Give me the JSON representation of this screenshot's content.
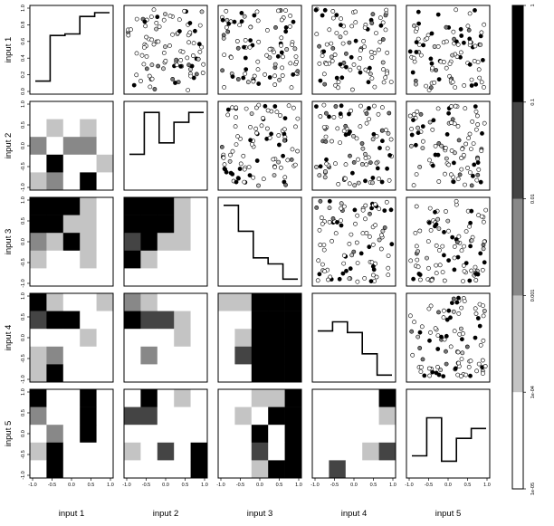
{
  "chart_data": {
    "type": "heatmap",
    "variables": [
      "input 1",
      "input 2",
      "input 3",
      "input 4",
      "input 5"
    ],
    "axis_ticks": [
      "-1.0",
      "-0.5",
      "0.0",
      "0.5",
      "1.0"
    ],
    "cdf_ticks": [
      "0.0",
      "0.2",
      "0.4",
      "0.6",
      "0.8",
      "1.0"
    ],
    "grid_breaks": [
      -1.0,
      -0.6,
      -0.2,
      0.2,
      0.6,
      1.0
    ],
    "color_scale": {
      "labels": [
        "1",
        "0.1",
        "0.01",
        "0.001",
        "1e-04",
        "1e-05"
      ],
      "colors": [
        "#000000",
        "#444444",
        "#888888",
        "#c4c4c4",
        "#ffffff"
      ],
      "scale": "log"
    },
    "diagonal_step_curves": {
      "input 1": [
        0.1,
        0.7,
        0.72,
        0.95,
        1.0
      ],
      "input 2": [
        0.4,
        0.95,
        0.55,
        0.82,
        0.95
      ],
      "input 3": [
        0.99,
        0.65,
        0.3,
        0.22,
        0.02
      ],
      "input 4": [
        0.6,
        0.72,
        0.58,
        0.3,
        0.02
      ],
      "input 5": [
        0.22,
        0.72,
        0.15,
        0.45,
        0.58
      ]
    },
    "heatmaps": [
      {
        "row": "input 2",
        "col": "input 1",
        "levels": [
          [
            4,
            4,
            4,
            4,
            4
          ],
          [
            4,
            3,
            4,
            3,
            4
          ],
          [
            2,
            4,
            2,
            2,
            4
          ],
          [
            4,
            0,
            4,
            4,
            3
          ],
          [
            3,
            2,
            4,
            0,
            4
          ]
        ]
      },
      {
        "row": "input 3",
        "col": "input 1",
        "levels": [
          [
            0,
            0,
            0,
            3,
            4
          ],
          [
            0,
            0,
            3,
            3,
            4
          ],
          [
            2,
            3,
            0,
            3,
            4
          ],
          [
            3,
            4,
            4,
            3,
            4
          ],
          [
            4,
            4,
            4,
            4,
            4
          ]
        ]
      },
      {
        "row": "input 3",
        "col": "input 2",
        "levels": [
          [
            0,
            0,
            0,
            3,
            4
          ],
          [
            0,
            0,
            0,
            3,
            4
          ],
          [
            1,
            0,
            3,
            3,
            4
          ],
          [
            0,
            3,
            4,
            4,
            4
          ],
          [
            4,
            4,
            4,
            4,
            4
          ]
        ]
      },
      {
        "row": "input 3",
        "col": "input 4",
        "levels": [
          [
            3,
            0,
            0,
            0,
            0
          ],
          [
            4,
            4,
            0,
            0,
            0
          ],
          [
            4,
            4,
            4,
            0,
            0
          ],
          [
            4,
            4,
            4,
            0,
            0
          ],
          [
            4,
            4,
            4,
            4,
            4
          ]
        ]
      },
      {
        "row": "input 4",
        "col": "input 1",
        "levels": [
          [
            0,
            3,
            4,
            4,
            3
          ],
          [
            1,
            0,
            0,
            4,
            4
          ],
          [
            4,
            4,
            4,
            3,
            4
          ],
          [
            3,
            2,
            4,
            4,
            4
          ],
          [
            3,
            0,
            4,
            4,
            4
          ]
        ]
      },
      {
        "row": "input 4",
        "col": "input 2",
        "levels": [
          [
            2,
            3,
            4,
            4,
            4
          ],
          [
            0,
            1,
            1,
            3,
            4
          ],
          [
            4,
            4,
            4,
            3,
            4
          ],
          [
            4,
            2,
            4,
            4,
            4
          ],
          [
            4,
            4,
            4,
            4,
            4
          ]
        ]
      },
      {
        "row": "input 4",
        "col": "input 3",
        "levels": [
          [
            3,
            3,
            0,
            0,
            0
          ],
          [
            4,
            4,
            0,
            0,
            0
          ],
          [
            4,
            3,
            0,
            0,
            0
          ],
          [
            4,
            1,
            0,
            0,
            0
          ],
          [
            4,
            4,
            0,
            0,
            0
          ]
        ]
      },
      {
        "row": "input 5",
        "col": "input 1",
        "levels": [
          [
            0,
            4,
            4,
            0,
            4
          ],
          [
            2,
            4,
            4,
            0,
            4
          ],
          [
            4,
            2,
            4,
            0,
            4
          ],
          [
            3,
            0,
            4,
            4,
            4
          ],
          [
            4,
            0,
            4,
            4,
            4
          ]
        ]
      },
      {
        "row": "input 5",
        "col": "input 2",
        "levels": [
          [
            4,
            0,
            4,
            3,
            4
          ],
          [
            1,
            1,
            4,
            4,
            4
          ],
          [
            4,
            4,
            4,
            4,
            4
          ],
          [
            3,
            4,
            1,
            4,
            0
          ],
          [
            4,
            4,
            4,
            4,
            0
          ]
        ]
      },
      {
        "row": "input 5",
        "col": "input 3",
        "levels": [
          [
            4,
            4,
            3,
            3,
            0
          ],
          [
            4,
            3,
            4,
            0,
            0
          ],
          [
            4,
            4,
            0,
            4,
            0
          ],
          [
            4,
            4,
            1,
            4,
            0
          ],
          [
            4,
            4,
            3,
            0,
            0
          ]
        ]
      },
      {
        "row": "input 5",
        "col": "input 4",
        "levels": [
          [
            4,
            4,
            4,
            4,
            0
          ],
          [
            4,
            4,
            4,
            4,
            3
          ],
          [
            4,
            4,
            4,
            4,
            4
          ],
          [
            4,
            4,
            4,
            3,
            1
          ],
          [
            4,
            1,
            4,
            4,
            4
          ]
        ]
      }
    ]
  }
}
